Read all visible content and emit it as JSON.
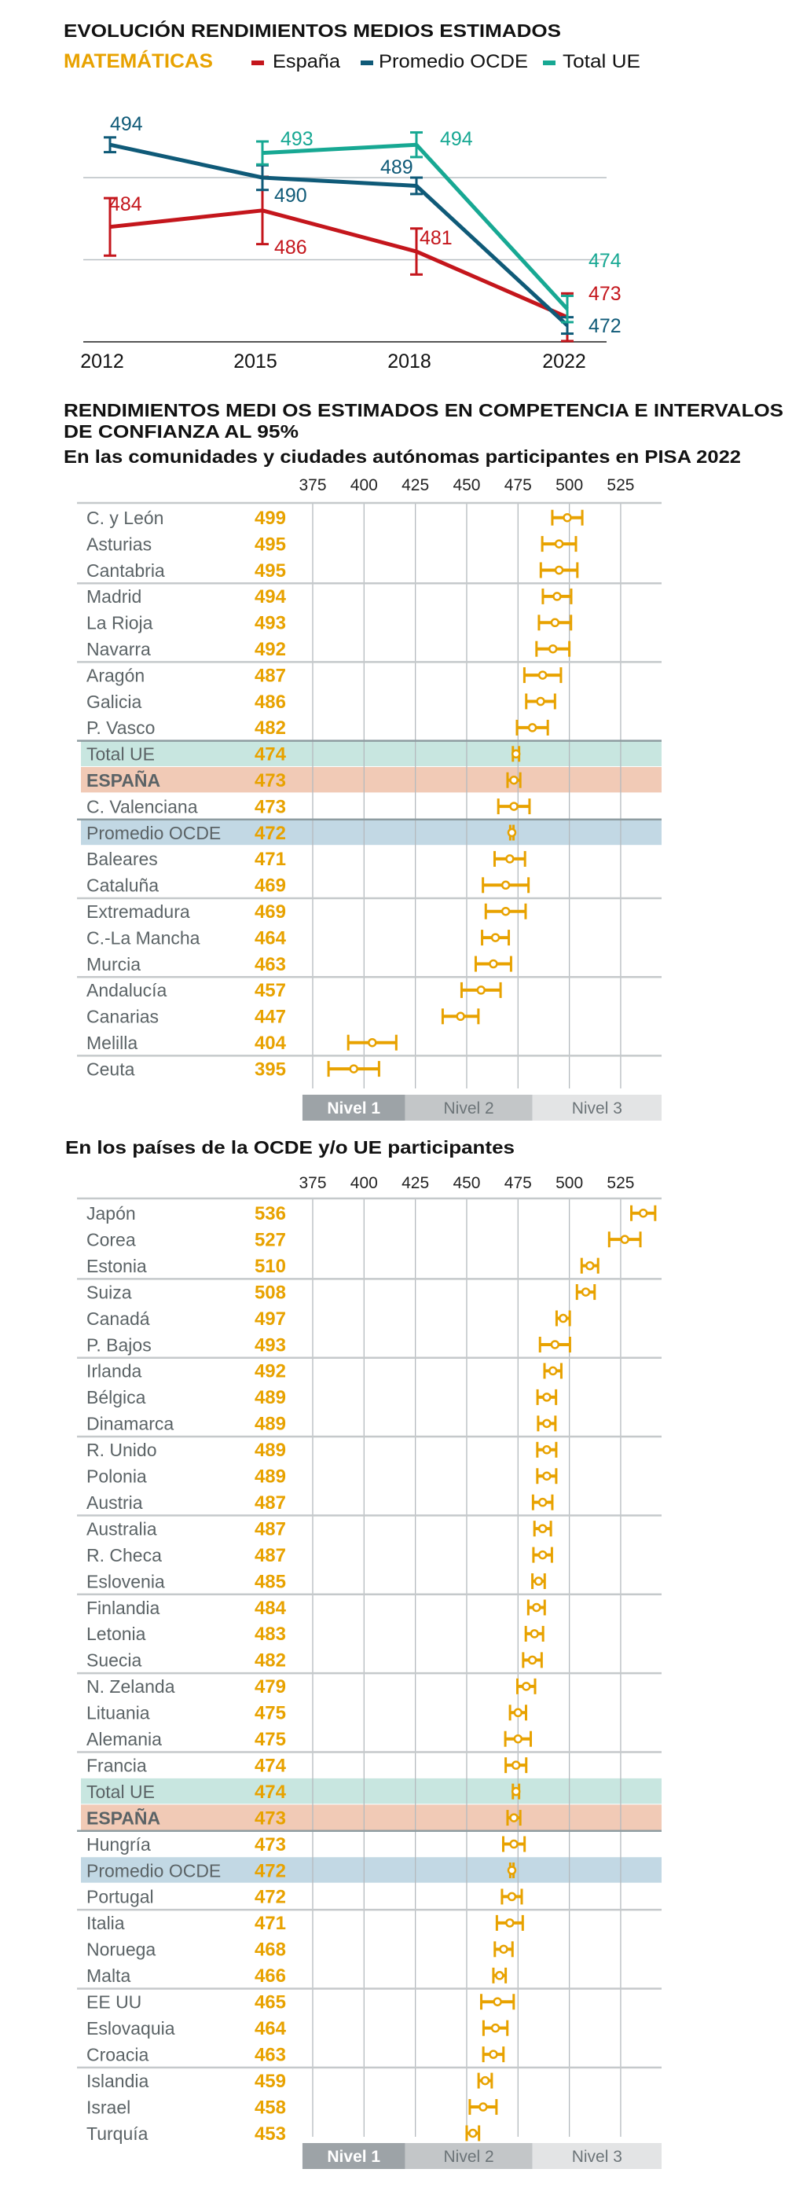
{
  "colors": {
    "spain": "#c4161c",
    "oecd": "#0f5a78",
    "eu": "#17a893",
    "accent": "#e8a200",
    "band_eu": "#c8e6e0",
    "band_es": "#f1cab6",
    "band_oecd": "#c2d8e4",
    "level1": "#9da3a7",
    "level2": "#c3c6c8",
    "level3": "#e3e4e5"
  },
  "evolution": {
    "title": "EVOLUCIÓN RENDIMIENTOS MEDIOS ESTIMADOS",
    "subject": "MATEMÁTICAS"
  },
  "ranking": {
    "title_line1": "RENDIMIENTOS MEDI OS ESTIMADOS EN COMPETENCIA E INTERVALOS",
    "title_line2": "DE CONFIANZA AL 95%",
    "subtitle_regions": "En las comunidades y ciudades autónomas participantes en PISA 2022",
    "subtitle_countries": "En los países de la OCDE y/o UE participantes"
  },
  "chart_data": [
    {
      "type": "line",
      "title": "EVOLUCIÓN RENDIMIENTOS MEDIOS ESTIMADOS",
      "subtitle": "MATEMÁTICAS",
      "x": [
        "2012",
        "2015",
        "2018",
        "2022"
      ],
      "ylim": [
        470,
        496
      ],
      "grid": true,
      "legend_position": "top",
      "series": [
        {
          "name": "España",
          "color_key": "spain",
          "values": [
            484,
            486,
            481,
            473
          ],
          "ci_half": [
            3.5,
            4.1,
            2.8,
            2.9
          ]
        },
        {
          "name": "Promedio OCDE",
          "color_key": "oecd",
          "values": [
            494,
            490,
            489,
            472
          ],
          "ci_half": [
            0.9,
            1.5,
            1.0,
            1.0
          ]
        },
        {
          "name": "Total UE",
          "color_key": "eu",
          "values": [
            null,
            493,
            494,
            474
          ],
          "ci_half": [
            null,
            1.4,
            1.5,
            1.6
          ]
        }
      ]
    },
    {
      "type": "scatter",
      "title": "En las comunidades y ciudades autónomas participantes en PISA 2022",
      "xlim": [
        365,
        540
      ],
      "xticks": [
        "375",
        "400",
        "425",
        "450",
        "475",
        "500",
        "525"
      ],
      "levels": [
        {
          "label": "Nivel 1",
          "from": 370,
          "to": 420
        },
        {
          "label": "Nivel 2",
          "to": 482
        },
        {
          "label": "Nivel 3",
          "to": 545
        }
      ],
      "rows": [
        {
          "name": "C. y León",
          "value": 499,
          "ci_half": 7.3
        },
        {
          "name": "Asturias",
          "value": 495,
          "ci_half": 8.2
        },
        {
          "name": "Cantabria",
          "value": 495,
          "ci_half": 8.9
        },
        {
          "name": "Madrid",
          "value": 494,
          "ci_half": 6.9
        },
        {
          "name": "La Rioja",
          "value": 493,
          "ci_half": 7.8
        },
        {
          "name": "Navarra",
          "value": 492,
          "ci_half": 8.0
        },
        {
          "name": "Aragón",
          "value": 487,
          "ci_half": 8.9
        },
        {
          "name": "Galicia",
          "value": 486,
          "ci_half": 7.0
        },
        {
          "name": "P. Vasco",
          "value": 482,
          "ci_half": 7.5
        },
        {
          "name": "Total UE",
          "value": 474,
          "ci_half": 1.5,
          "highlight": "eu"
        },
        {
          "name": "ESPAÑA",
          "value": 473,
          "ci_half": 3.1,
          "highlight": "es"
        },
        {
          "name": "C. Valenciana",
          "value": 473,
          "ci_half": 7.6
        },
        {
          "name": "Promedio OCDE",
          "value": 472,
          "ci_half": 0.8,
          "highlight": "oecd"
        },
        {
          "name": "Baleares",
          "value": 471,
          "ci_half": 7.4
        },
        {
          "name": "Cataluña",
          "value": 469,
          "ci_half": 11.1
        },
        {
          "name": "Extremadura",
          "value": 469,
          "ci_half": 9.7
        },
        {
          "name": "C.-La Mancha",
          "value": 464,
          "ci_half": 6.5
        },
        {
          "name": "Murcia",
          "value": 463,
          "ci_half": 8.6
        },
        {
          "name": "Andalucía",
          "value": 457,
          "ci_half": 9.5
        },
        {
          "name": "Canarias",
          "value": 447,
          "ci_half": 8.7
        },
        {
          "name": "Melilla",
          "value": 404,
          "ci_half": 11.7
        },
        {
          "name": "Ceuta",
          "value": 395,
          "ci_half": 12.3
        }
      ]
    },
    {
      "type": "scatter",
      "title": "En los países de la OCDE y/o UE participantes",
      "xlim": [
        365,
        540
      ],
      "xticks": [
        "375",
        "400",
        "425",
        "450",
        "475",
        "500",
        "525"
      ],
      "levels": [
        {
          "label": "Nivel 1",
          "from": 370,
          "to": 420
        },
        {
          "label": "Nivel 2",
          "to": 482
        },
        {
          "label": "Nivel 3",
          "to": 545
        }
      ],
      "rows": [
        {
          "name": "Japón",
          "value": 536,
          "ci_half": 5.8
        },
        {
          "name": "Corea",
          "value": 527,
          "ci_half": 7.6
        },
        {
          "name": "Estonia",
          "value": 510,
          "ci_half": 4.0
        },
        {
          "name": "Suiza",
          "value": 508,
          "ci_half": 4.3
        },
        {
          "name": "Canadá",
          "value": 497,
          "ci_half": 3.2
        },
        {
          "name": "P. Bajos",
          "value": 493,
          "ci_half": 7.3
        },
        {
          "name": "Irlanda",
          "value": 492,
          "ci_half": 4.1
        },
        {
          "name": "Bélgica",
          "value": 489,
          "ci_half": 4.5
        },
        {
          "name": "Dinamarca",
          "value": 489,
          "ci_half": 4.2
        },
        {
          "name": "R. Unido",
          "value": 489,
          "ci_half": 4.6
        },
        {
          "name": "Polonia",
          "value": 489,
          "ci_half": 4.6
        },
        {
          "name": "Austria",
          "value": 487,
          "ci_half": 4.7
        },
        {
          "name": "Australia",
          "value": 487,
          "ci_half": 4.0
        },
        {
          "name": "R. Checa",
          "value": 487,
          "ci_half": 4.5
        },
        {
          "name": "Eslovenia",
          "value": 485,
          "ci_half": 3.0
        },
        {
          "name": "Finlandia",
          "value": 484,
          "ci_half": 4.0
        },
        {
          "name": "Letonia",
          "value": 483,
          "ci_half": 4.2
        },
        {
          "name": "Suecia",
          "value": 482,
          "ci_half": 4.5
        },
        {
          "name": "N. Zelanda",
          "value": 479,
          "ci_half": 4.3
        },
        {
          "name": "Lituania",
          "value": 475,
          "ci_half": 3.9
        },
        {
          "name": "Alemania",
          "value": 475,
          "ci_half": 6.2
        },
        {
          "name": "Francia",
          "value": 474,
          "ci_half": 5.0
        },
        {
          "name": "Total UE",
          "value": 474,
          "ci_half": 1.5,
          "highlight": "eu"
        },
        {
          "name": "ESPAÑA",
          "value": 473,
          "ci_half": 3.1,
          "highlight": "es"
        },
        {
          "name": "Hungría",
          "value": 473,
          "ci_half": 5.2
        },
        {
          "name": "Promedio OCDE",
          "value": 472,
          "ci_half": 0.8,
          "highlight": "oecd"
        },
        {
          "name": "Portugal",
          "value": 472,
          "ci_half": 4.8
        },
        {
          "name": "Italia",
          "value": 471,
          "ci_half": 6.3
        },
        {
          "name": "Noruega",
          "value": 468,
          "ci_half": 4.3
        },
        {
          "name": "Malta",
          "value": 466,
          "ci_half": 3.0
        },
        {
          "name": "EE UU",
          "value": 465,
          "ci_half": 7.9
        },
        {
          "name": "Eslovaquia",
          "value": 464,
          "ci_half": 5.8
        },
        {
          "name": "Croacia",
          "value": 463,
          "ci_half": 4.9
        },
        {
          "name": "Islandia",
          "value": 459,
          "ci_half": 3.2
        },
        {
          "name": "Israel",
          "value": 458,
          "ci_half": 6.5
        },
        {
          "name": "Turquía",
          "value": 453,
          "ci_half": 3.0
        }
      ]
    }
  ]
}
